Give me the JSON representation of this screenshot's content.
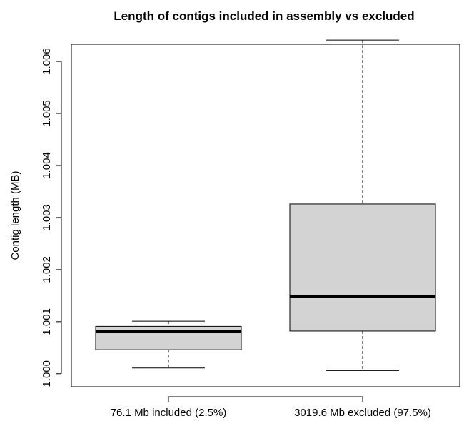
{
  "chart_data": {
    "type": "boxplot",
    "title": "Length of contigs included in assembly vs excluded",
    "xlabel": "",
    "ylabel": "Contig length (MB)",
    "ylim": [
      0.99975,
      1.00633
    ],
    "yticks": [
      1.0,
      1.001,
      1.002,
      1.003,
      1.004,
      1.005,
      1.006
    ],
    "ytick_labels": [
      "1.000",
      "1.001",
      "1.002",
      "1.003",
      "1.004",
      "1.005",
      "1.006"
    ],
    "categories": [
      "76.1 Mb included (2.5%)",
      "3019.6 Mb excluded (97.5%)"
    ],
    "boxes": [
      {
        "category": "76.1 Mb included (2.5%)",
        "whisker_low": 1.00011,
        "q1": 1.00046,
        "median": 1.00081,
        "q3": 1.00091,
        "whisker_high": 1.00101
      },
      {
        "category": "3019.6 Mb excluded (97.5%)",
        "whisker_low": 1.00006,
        "q1": 1.00082,
        "median": 1.00148,
        "q3": 1.00326,
        "whisker_high": 1.00641
      }
    ],
    "box_fill": "#d3d3d3",
    "grid": false
  }
}
